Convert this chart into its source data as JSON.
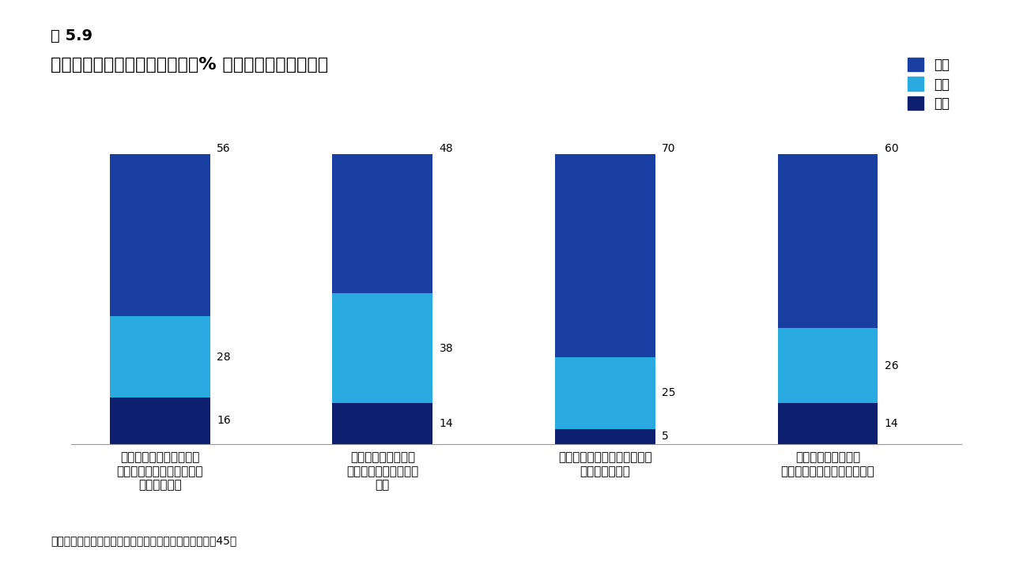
{
  "title_line1": "図 5.9",
  "title_line2": "金に関する意見への同意状況（% 引用、中央銀行のみ）",
  "categories": [
    "中央銀行の準備金が武器\n化される可能性が金の魅力\nを高めている",
    "米国の債務水準の上\n昇が金の魅力を高めて\nいる",
    "金をインフレに対するヘッジ\nとみなしている",
    "金は地政学的混乱に\n対するヘッジとみなしている"
  ],
  "agree": [
    56,
    48,
    70,
    60
  ],
  "neutral": [
    28,
    38,
    25,
    26
  ],
  "disagree": [
    16,
    14,
    5,
    14
  ],
  "color_agree": "#1a3fa3",
  "color_neutral": "#29abe2",
  "color_disagree": "#0d1f6e",
  "legend_labels": [
    "同意",
    "中立",
    "反対"
  ],
  "footnote": "以下の内容にどの程度同意しますか？に対する回答数：45。",
  "ylim": [
    0,
    110
  ],
  "bar_width": 0.45
}
